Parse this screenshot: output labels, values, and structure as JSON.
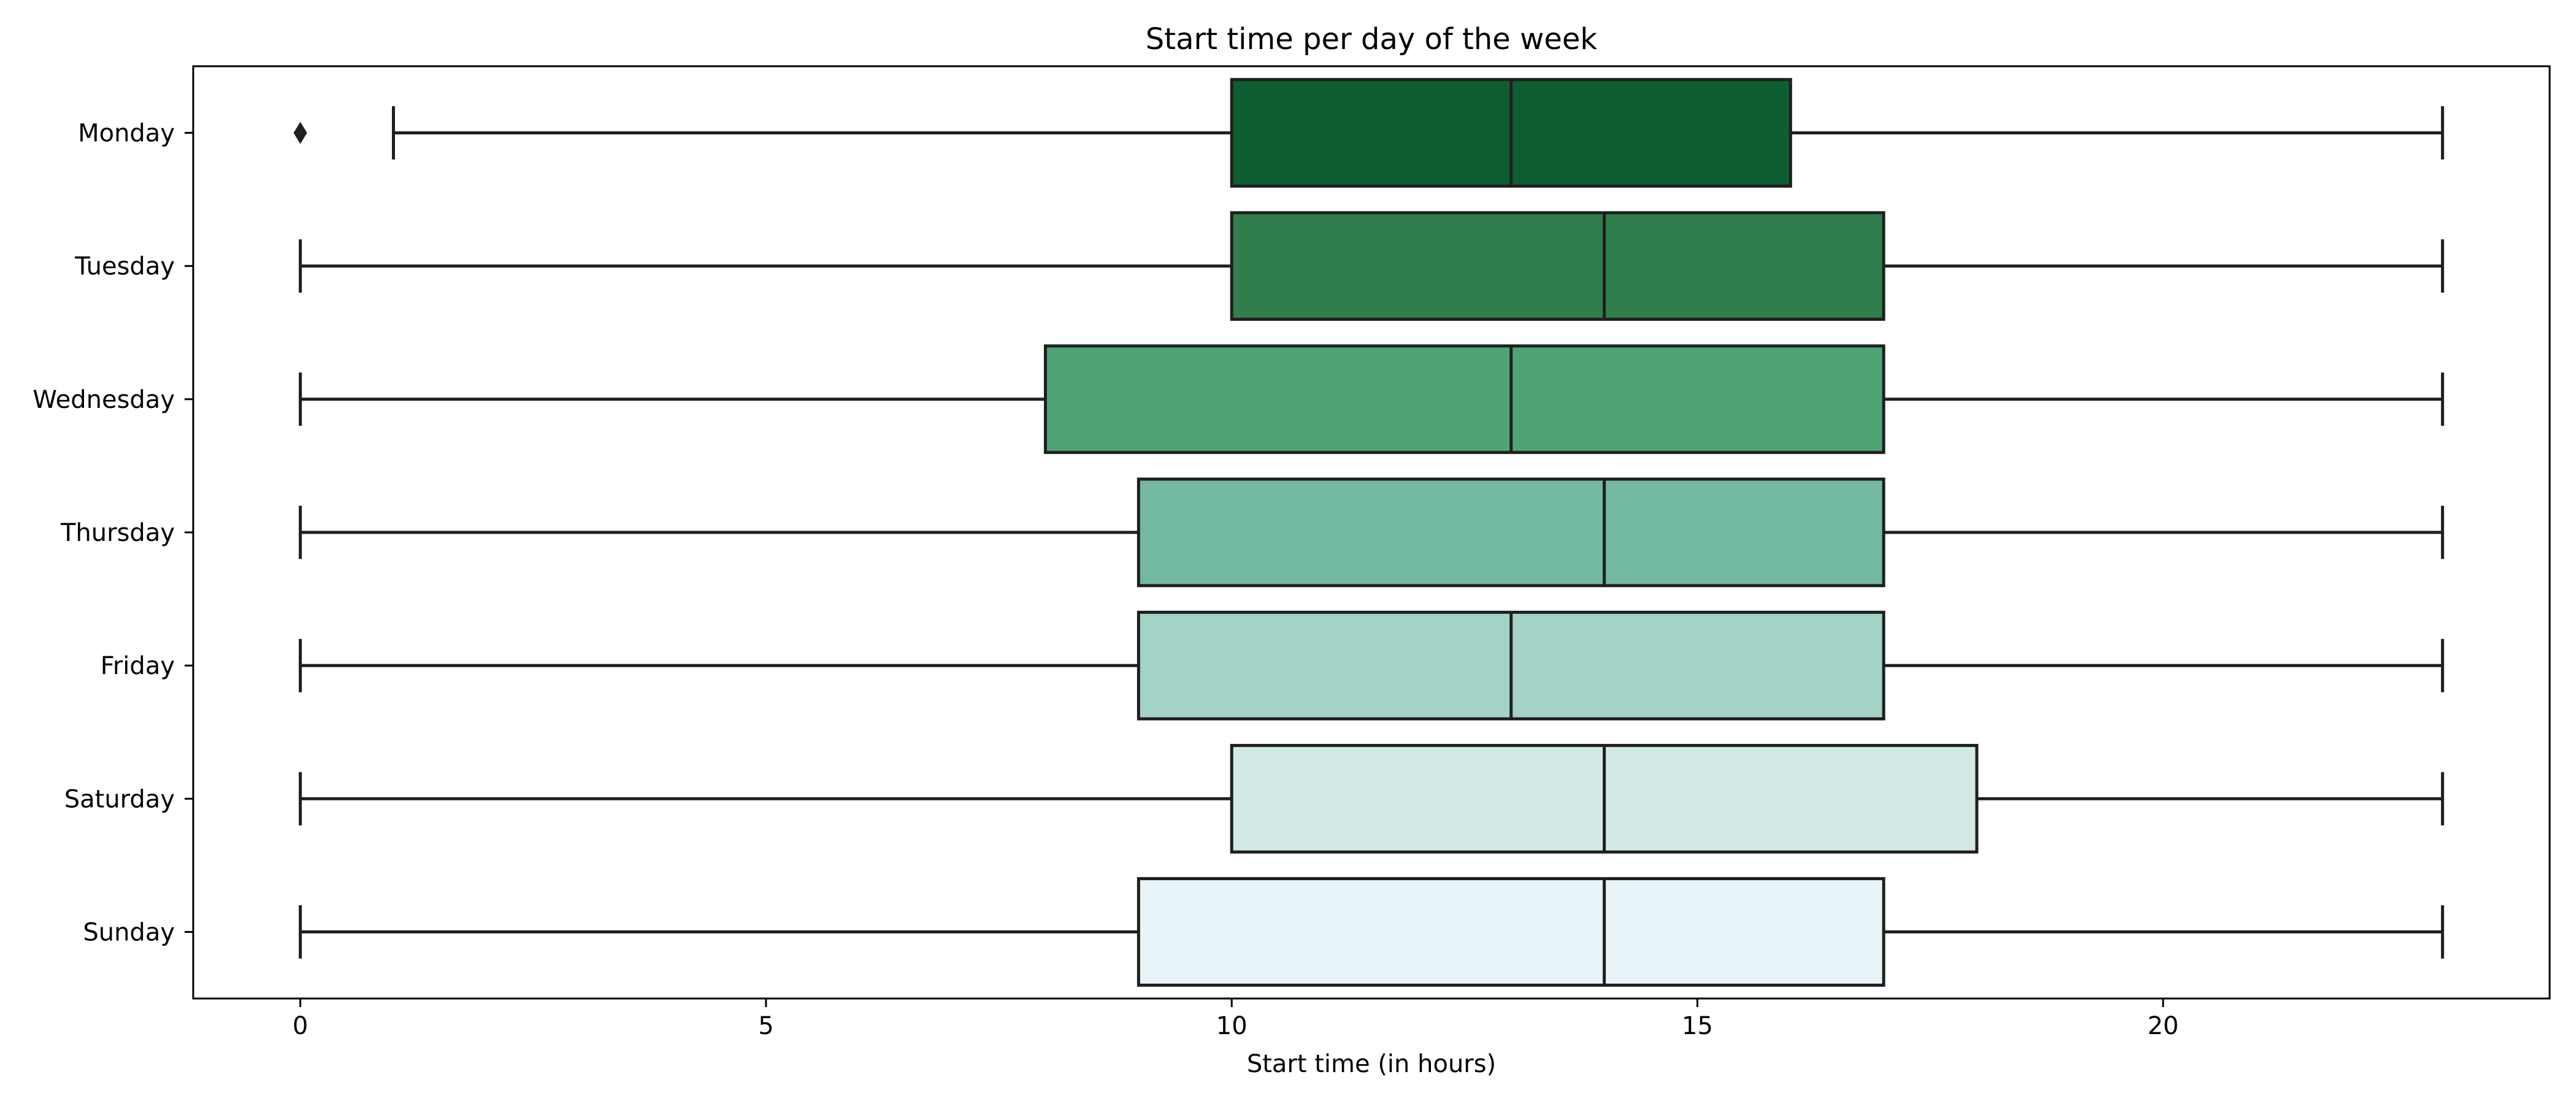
{
  "chart_data": {
    "type": "boxplot",
    "orientation": "horizontal",
    "title": "Start time per day of the week",
    "xlabel": "Start time (in hours)",
    "ylabel": "",
    "xlim": [
      -1.15,
      24.15
    ],
    "xticks": [
      0,
      5,
      10,
      15,
      20
    ],
    "grid": false,
    "categories": [
      "Monday",
      "Tuesday",
      "Wednesday",
      "Thursday",
      "Friday",
      "Saturday",
      "Sunday"
    ],
    "boxes": [
      {
        "label": "Monday",
        "whisker_low": 1,
        "q1": 10,
        "median": 13,
        "q3": 16,
        "whisker_high": 23,
        "outliers": [
          0
        ],
        "color": "#0d5f31"
      },
      {
        "label": "Tuesday",
        "whisker_low": 0,
        "q1": 10,
        "median": 14,
        "q3": 17,
        "whisker_high": 23,
        "outliers": [],
        "color": "#2f7e4b"
      },
      {
        "label": "Wednesday",
        "whisker_low": 0,
        "q1": 8,
        "median": 13,
        "q3": 17,
        "whisker_high": 23,
        "outliers": [],
        "color": "#4fa375"
      },
      {
        "label": "Thursday",
        "whisker_low": 0,
        "q1": 9,
        "median": 14,
        "q3": 17,
        "whisker_high": 23,
        "outliers": [],
        "color": "#73b8a1"
      },
      {
        "label": "Friday",
        "whisker_low": 0,
        "q1": 9,
        "median": 13,
        "q3": 17,
        "whisker_high": 23,
        "outliers": [],
        "color": "#a3d3c6"
      },
      {
        "label": "Saturday",
        "whisker_low": 0,
        "q1": 10,
        "median": 14,
        "q3": 18,
        "whisker_high": 23,
        "outliers": [],
        "color": "#d3e9e5"
      },
      {
        "label": "Sunday",
        "whisker_low": 0,
        "q1": 9,
        "median": 14,
        "q3": 17,
        "whisker_high": 23,
        "outliers": [],
        "color": "#e8f4f8"
      }
    ]
  }
}
